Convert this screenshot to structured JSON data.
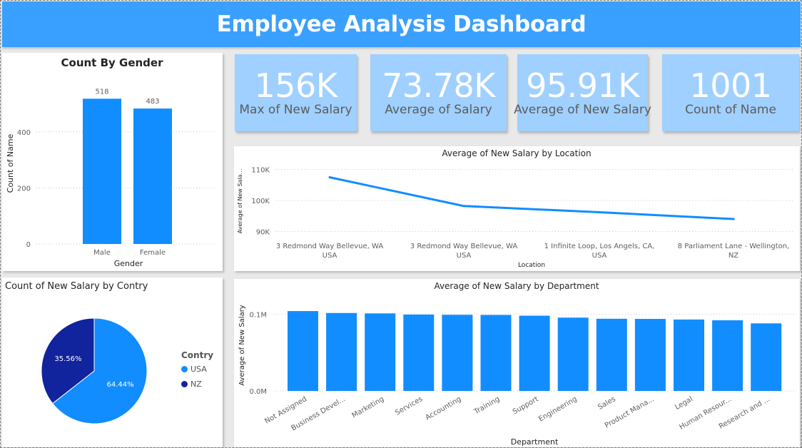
{
  "dashboard": {
    "title": "Employee Analysis Dashboard"
  },
  "cards": [
    {
      "value": "156K",
      "label": "Max of New Salary"
    },
    {
      "value": "73.78K",
      "label": "Average of Salary"
    },
    {
      "value": "95.91K",
      "label": "Average of New Salary"
    },
    {
      "value": "1001",
      "label": "Count of Name"
    }
  ],
  "colors": {
    "primary": "#118dff",
    "dark": "#12239e",
    "card": "#9fd0ff",
    "header": "#3aa0ff"
  },
  "chart_data": [
    {
      "type": "bar",
      "title": "Count By Gender",
      "xlabel": "Gender",
      "ylabel": "Count of Name",
      "categories": [
        "Male",
        "Female"
      ],
      "values": [
        518,
        483
      ],
      "data_labels": [
        "518",
        "483"
      ],
      "yticks": [
        0,
        200,
        400
      ],
      "ylim": [
        0,
        580
      ],
      "grid": true
    },
    {
      "type": "line",
      "title": "Average of New Salary by Location",
      "xlabel": "Location",
      "ylabel": "Average of New Sala...",
      "categories": [
        [
          "3 Redmond Way Bellevue, WA",
          "USA"
        ],
        [
          "3 Redmond Way Bellevue, WA",
          "USA"
        ],
        [
          "1 Infinite Loop, Los Angels, CA,",
          "USA"
        ],
        [
          "8 Parliament Lane - Wellington,",
          "NZ"
        ]
      ],
      "values": [
        107500,
        98200,
        96200,
        94000
      ],
      "yticks": [
        90000,
        100000,
        110000
      ],
      "ytick_labels": [
        "90K",
        "100K",
        "110K"
      ],
      "ylim": [
        88000,
        112000
      ],
      "grid": true
    },
    {
      "type": "pie",
      "title": "Count of New Salary by Contry",
      "legend_title": "Contry",
      "legend_position": "right",
      "slices": [
        {
          "name": "USA",
          "value": 64.44,
          "label": "64.44%",
          "color": "#118dff"
        },
        {
          "name": "NZ",
          "value": 35.56,
          "label": "35.56%",
          "color": "#12239e"
        }
      ]
    },
    {
      "type": "bar",
      "title": "Average of New Salary by Department",
      "xlabel": "Department",
      "ylabel": "Average of New Salary",
      "categories": [
        "Not Assigned",
        "Business Devel...",
        "Marketing",
        "Services",
        "Accounting",
        "Training",
        "Support",
        "Engineering",
        "Sales",
        "Product Mana...",
        "Legal",
        "Human Resour...",
        "Research and ..."
      ],
      "values": [
        104000,
        101500,
        101000,
        99500,
        99200,
        99000,
        98000,
        95500,
        94000,
        93800,
        93000,
        92000,
        88000
      ],
      "yticks": [
        0,
        100000
      ],
      "ytick_labels": [
        "0.0M",
        "0.1M"
      ],
      "ylim": [
        0,
        118000
      ],
      "grid": true
    }
  ]
}
